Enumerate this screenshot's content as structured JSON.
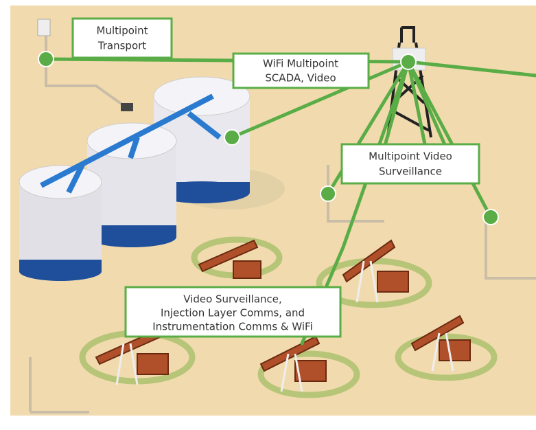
{
  "labels": [
    {
      "lines": [
        "Multipoint",
        "Transport"
      ]
    },
    {
      "lines": [
        "WiFi Multipoint",
        "SCADA, Video"
      ]
    },
    {
      "lines": [
        "Multipoint Video",
        "Surveillance"
      ]
    },
    {
      "lines": [
        "Video Surveillance,",
        "Injection Layer Comms, and",
        "Instrumentation Comms & WiFi"
      ]
    }
  ]
}
